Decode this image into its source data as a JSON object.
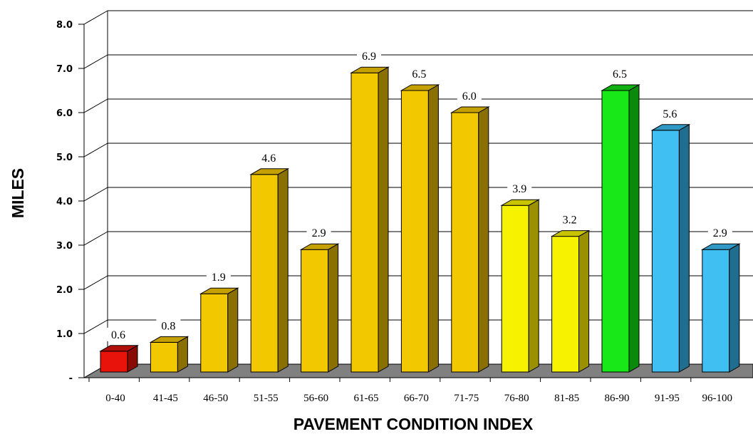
{
  "chart_data": {
    "type": "bar",
    "title": "",
    "xlabel": "PAVEMENT CONDITION INDEX",
    "ylabel": "MILES",
    "ylim": [
      0,
      8
    ],
    "yticks": [
      "-",
      "1.0",
      "2.0",
      "3.0",
      "4.0",
      "5.0",
      "6.0",
      "7.0",
      "8.0"
    ],
    "grid": true,
    "categories": [
      "0-40",
      "41-45",
      "46-50",
      "51-55",
      "56-60",
      "61-65",
      "66-70",
      "71-75",
      "76-80",
      "81-85",
      "86-90",
      "91-95",
      "96-100"
    ],
    "values": [
      0.6,
      0.8,
      1.9,
      4.6,
      2.9,
      6.9,
      6.5,
      6.0,
      3.9,
      3.2,
      6.5,
      5.6,
      2.9
    ],
    "value_labels": [
      "0.6",
      "0.8",
      "1.9",
      "4.6",
      "2.9",
      "6.9",
      "6.5",
      "6.0",
      "3.9",
      "3.2",
      "6.5",
      "5.6",
      "2.9"
    ],
    "bar_colors": [
      "#e8140c",
      "#f2c800",
      "#f2c800",
      "#f2c800",
      "#f2c800",
      "#f2c800",
      "#f2c800",
      "#f2c800",
      "#f6f200",
      "#f6f200",
      "#18e818",
      "#40c0f2",
      "#40c0f2"
    ],
    "side_colors": [
      "#8a0a05",
      "#8a7000",
      "#8a7000",
      "#8a7000",
      "#8a7000",
      "#8a7000",
      "#8a7000",
      "#8a7000",
      "#9a9000",
      "#9a9000",
      "#0a8a0a",
      "#1f6e90",
      "#1f6e90"
    ],
    "top_colors": [
      "#b01008",
      "#c4a000",
      "#c4a000",
      "#c4a000",
      "#c4a000",
      "#c4a000",
      "#c4a000",
      "#c4a000",
      "#c8c400",
      "#c8c400",
      "#10b010",
      "#3098c4",
      "#3098c4"
    ],
    "floor_color": "#808080"
  }
}
